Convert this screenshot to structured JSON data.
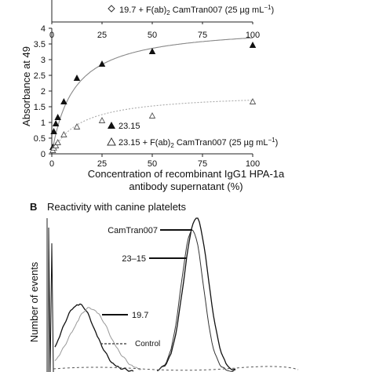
{
  "panel_a": {
    "ylabel": "Absorbance at 49",
    "xlabel_line1": "Concentration of recombinant IgG1 HPA-1a",
    "xlabel_line2": "antibody supernatant (%)"
  },
  "panel_b": {
    "label": "B",
    "title": "Reactivity with canine platelets",
    "ylabel": "Number of events",
    "annotations": {
      "camtran": "CamTran007",
      "c2315": "23–15",
      "c197": "19.7",
      "control": "Control"
    }
  },
  "chart_data": [
    {
      "type": "scatter",
      "partial": true,
      "xlim": [
        0,
        100
      ],
      "x_ticks": [
        "0",
        "25",
        "50",
        "75",
        "100"
      ],
      "series": [
        {
          "name": "19.7 + F(ab)2 CamTran007 (25 µg mL−1)",
          "legend_label": "19.7 + F(ab)",
          "legend_sub": "2",
          "legend_rest": " CamTran007 (25 µg mL",
          "legend_sup": "−1",
          "legend_close": ")",
          "marker": "open-diamond",
          "legend_only": true
        }
      ]
    },
    {
      "type": "scatter",
      "xlim": [
        0,
        100
      ],
      "ylim": [
        0,
        4
      ],
      "x_ticks": [
        "0",
        "25",
        "50",
        "75",
        "100"
      ],
      "y_ticks": [
        "0",
        "0.5",
        "1",
        "1.5",
        "2",
        "2.5",
        "3",
        "3.5",
        "4"
      ],
      "series": [
        {
          "name": "23.15",
          "marker": "filled-triangle",
          "x": [
            0.5,
            1,
            2,
            3,
            6,
            12.5,
            25,
            50,
            100
          ],
          "y": [
            0.2,
            0.7,
            0.95,
            1.15,
            1.65,
            2.4,
            2.85,
            3.25,
            3.45
          ],
          "fit_Bmax": 4.1,
          "fit_Kd": 11
        },
        {
          "name": "23.15 + F(ab)2 CamTran007 (25 µg mL−1)",
          "legend_label": "23.15 + F(ab)",
          "legend_sub": "2",
          "legend_rest": " CamTran007 (25 µg mL",
          "legend_sup": "−1",
          "legend_close": ")",
          "marker": "open-triangle",
          "x": [
            0.5,
            1,
            2,
            3,
            6,
            12.5,
            25,
            50,
            100
          ],
          "y": [
            0.1,
            0.18,
            0.25,
            0.35,
            0.6,
            0.85,
            1.05,
            1.2,
            1.65
          ],
          "fit_Bmax": 1.95,
          "fit_Kd": 14
        }
      ]
    },
    {
      "type": "line",
      "partial": true,
      "series": [
        {
          "name": "CamTran007",
          "y_peak": 195,
          "x_peak": 250
        },
        {
          "name": "23–15",
          "y_peak": 180,
          "x_peak": 245
        },
        {
          "name": "19.7",
          "y_peak": 85,
          "x_peak": 100
        },
        {
          "name": "Control",
          "y_peak": 80,
          "x_peak": 115
        }
      ]
    }
  ]
}
